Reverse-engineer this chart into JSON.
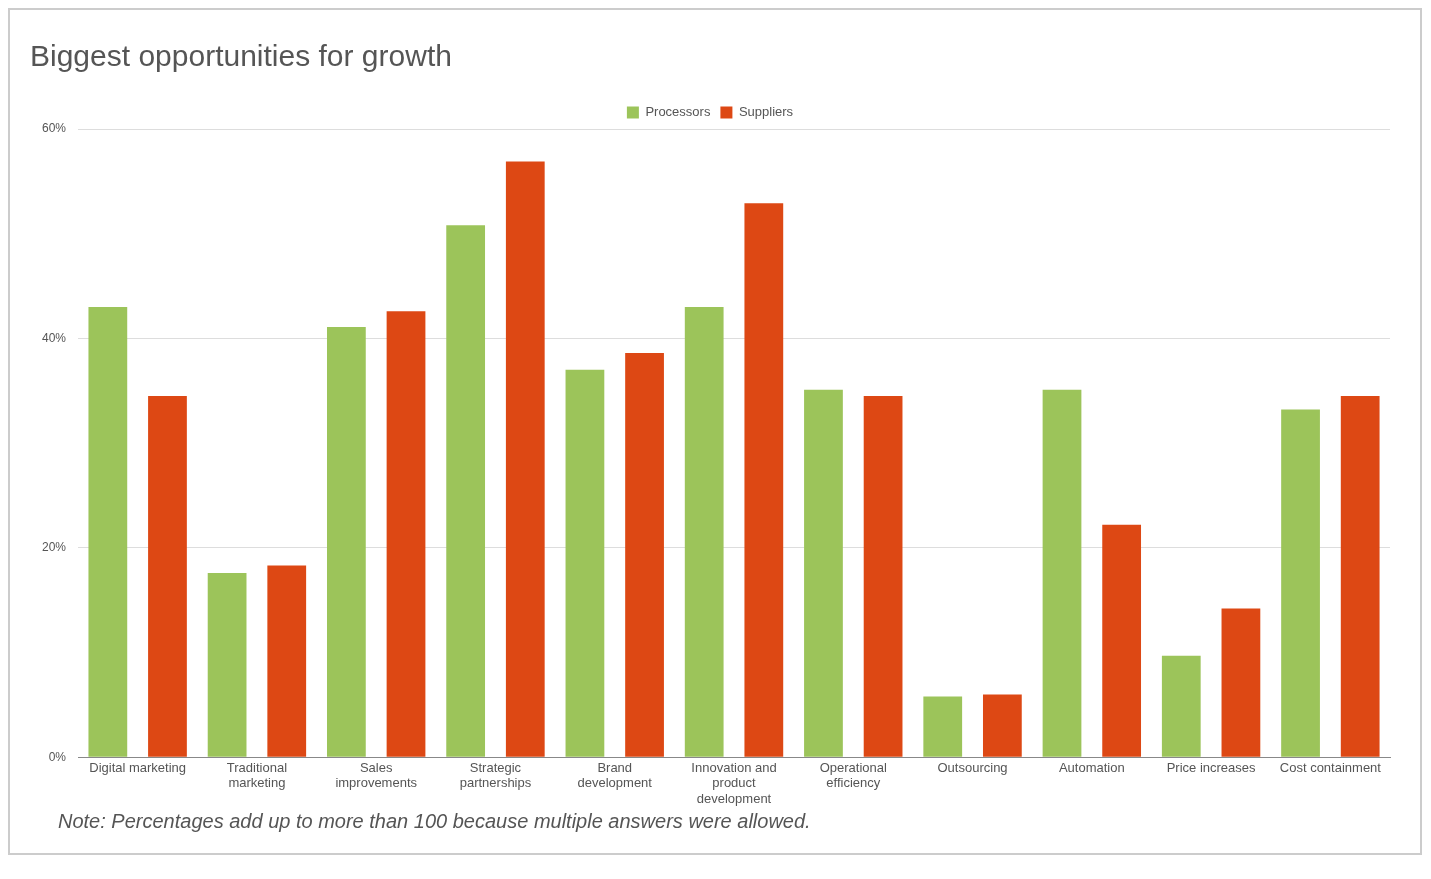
{
  "chart_data": {
    "type": "bar",
    "title": "Biggest opportunities for growth",
    "categories": [
      "Digital marketing",
      "Traditional marketing",
      "Sales improvements",
      "Strategic partnerships",
      "Brand development",
      "Innovation and product development",
      "Operational efficiency",
      "Outsourcing",
      "Automation",
      "Price increases",
      "Cost containment"
    ],
    "series": [
      {
        "name": "Processors",
        "color": "#9cc45a",
        "values": [
          43,
          17.6,
          41.1,
          50.8,
          37,
          43,
          35.1,
          5.8,
          35.1,
          9.7,
          33.2
        ]
      },
      {
        "name": "Suppliers",
        "color": "#dd4814",
        "values": [
          34.5,
          18.3,
          42.6,
          56.9,
          38.6,
          52.9,
          34.5,
          6,
          22.2,
          14.2,
          34.5
        ]
      }
    ],
    "ylim": [
      0,
      60
    ],
    "yticks": [
      {
        "value": 0,
        "label": "0%"
      },
      {
        "value": 20,
        "label": "20%"
      },
      {
        "value": 40,
        "label": "40%"
      },
      {
        "value": 60,
        "label": "60%"
      }
    ],
    "grid": "y",
    "legend": "top",
    "annotations": [
      "Note: Percentages add up to more than 100 because multiple answers were allowed."
    ]
  }
}
